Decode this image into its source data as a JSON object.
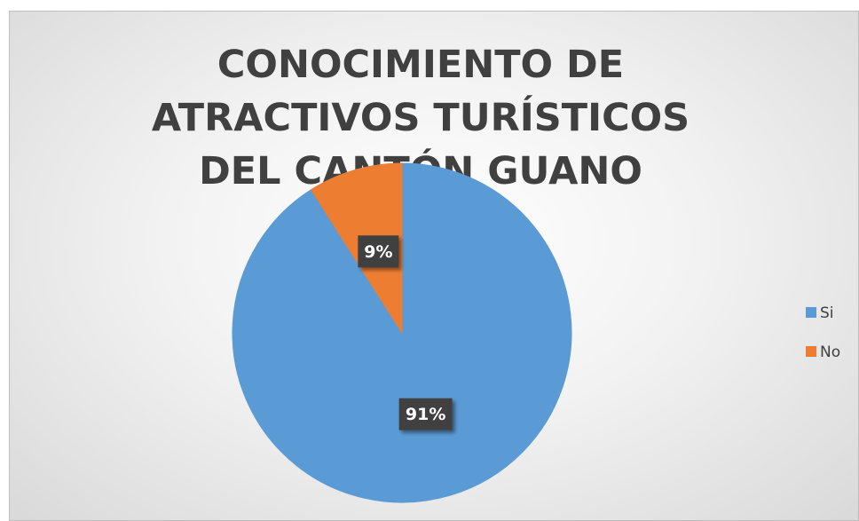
{
  "chart_data": {
    "type": "pie",
    "title": "CONOCIMIENTO DE ATRACTIVOS TURÍSTICOS DEL CANTÓN GUANO",
    "categories": [
      "Si",
      "No"
    ],
    "values": [
      91,
      9
    ],
    "value_labels": [
      "91%",
      "9%"
    ],
    "colors": [
      "#5b9bd5",
      "#ed7d31"
    ],
    "legend": "right"
  }
}
